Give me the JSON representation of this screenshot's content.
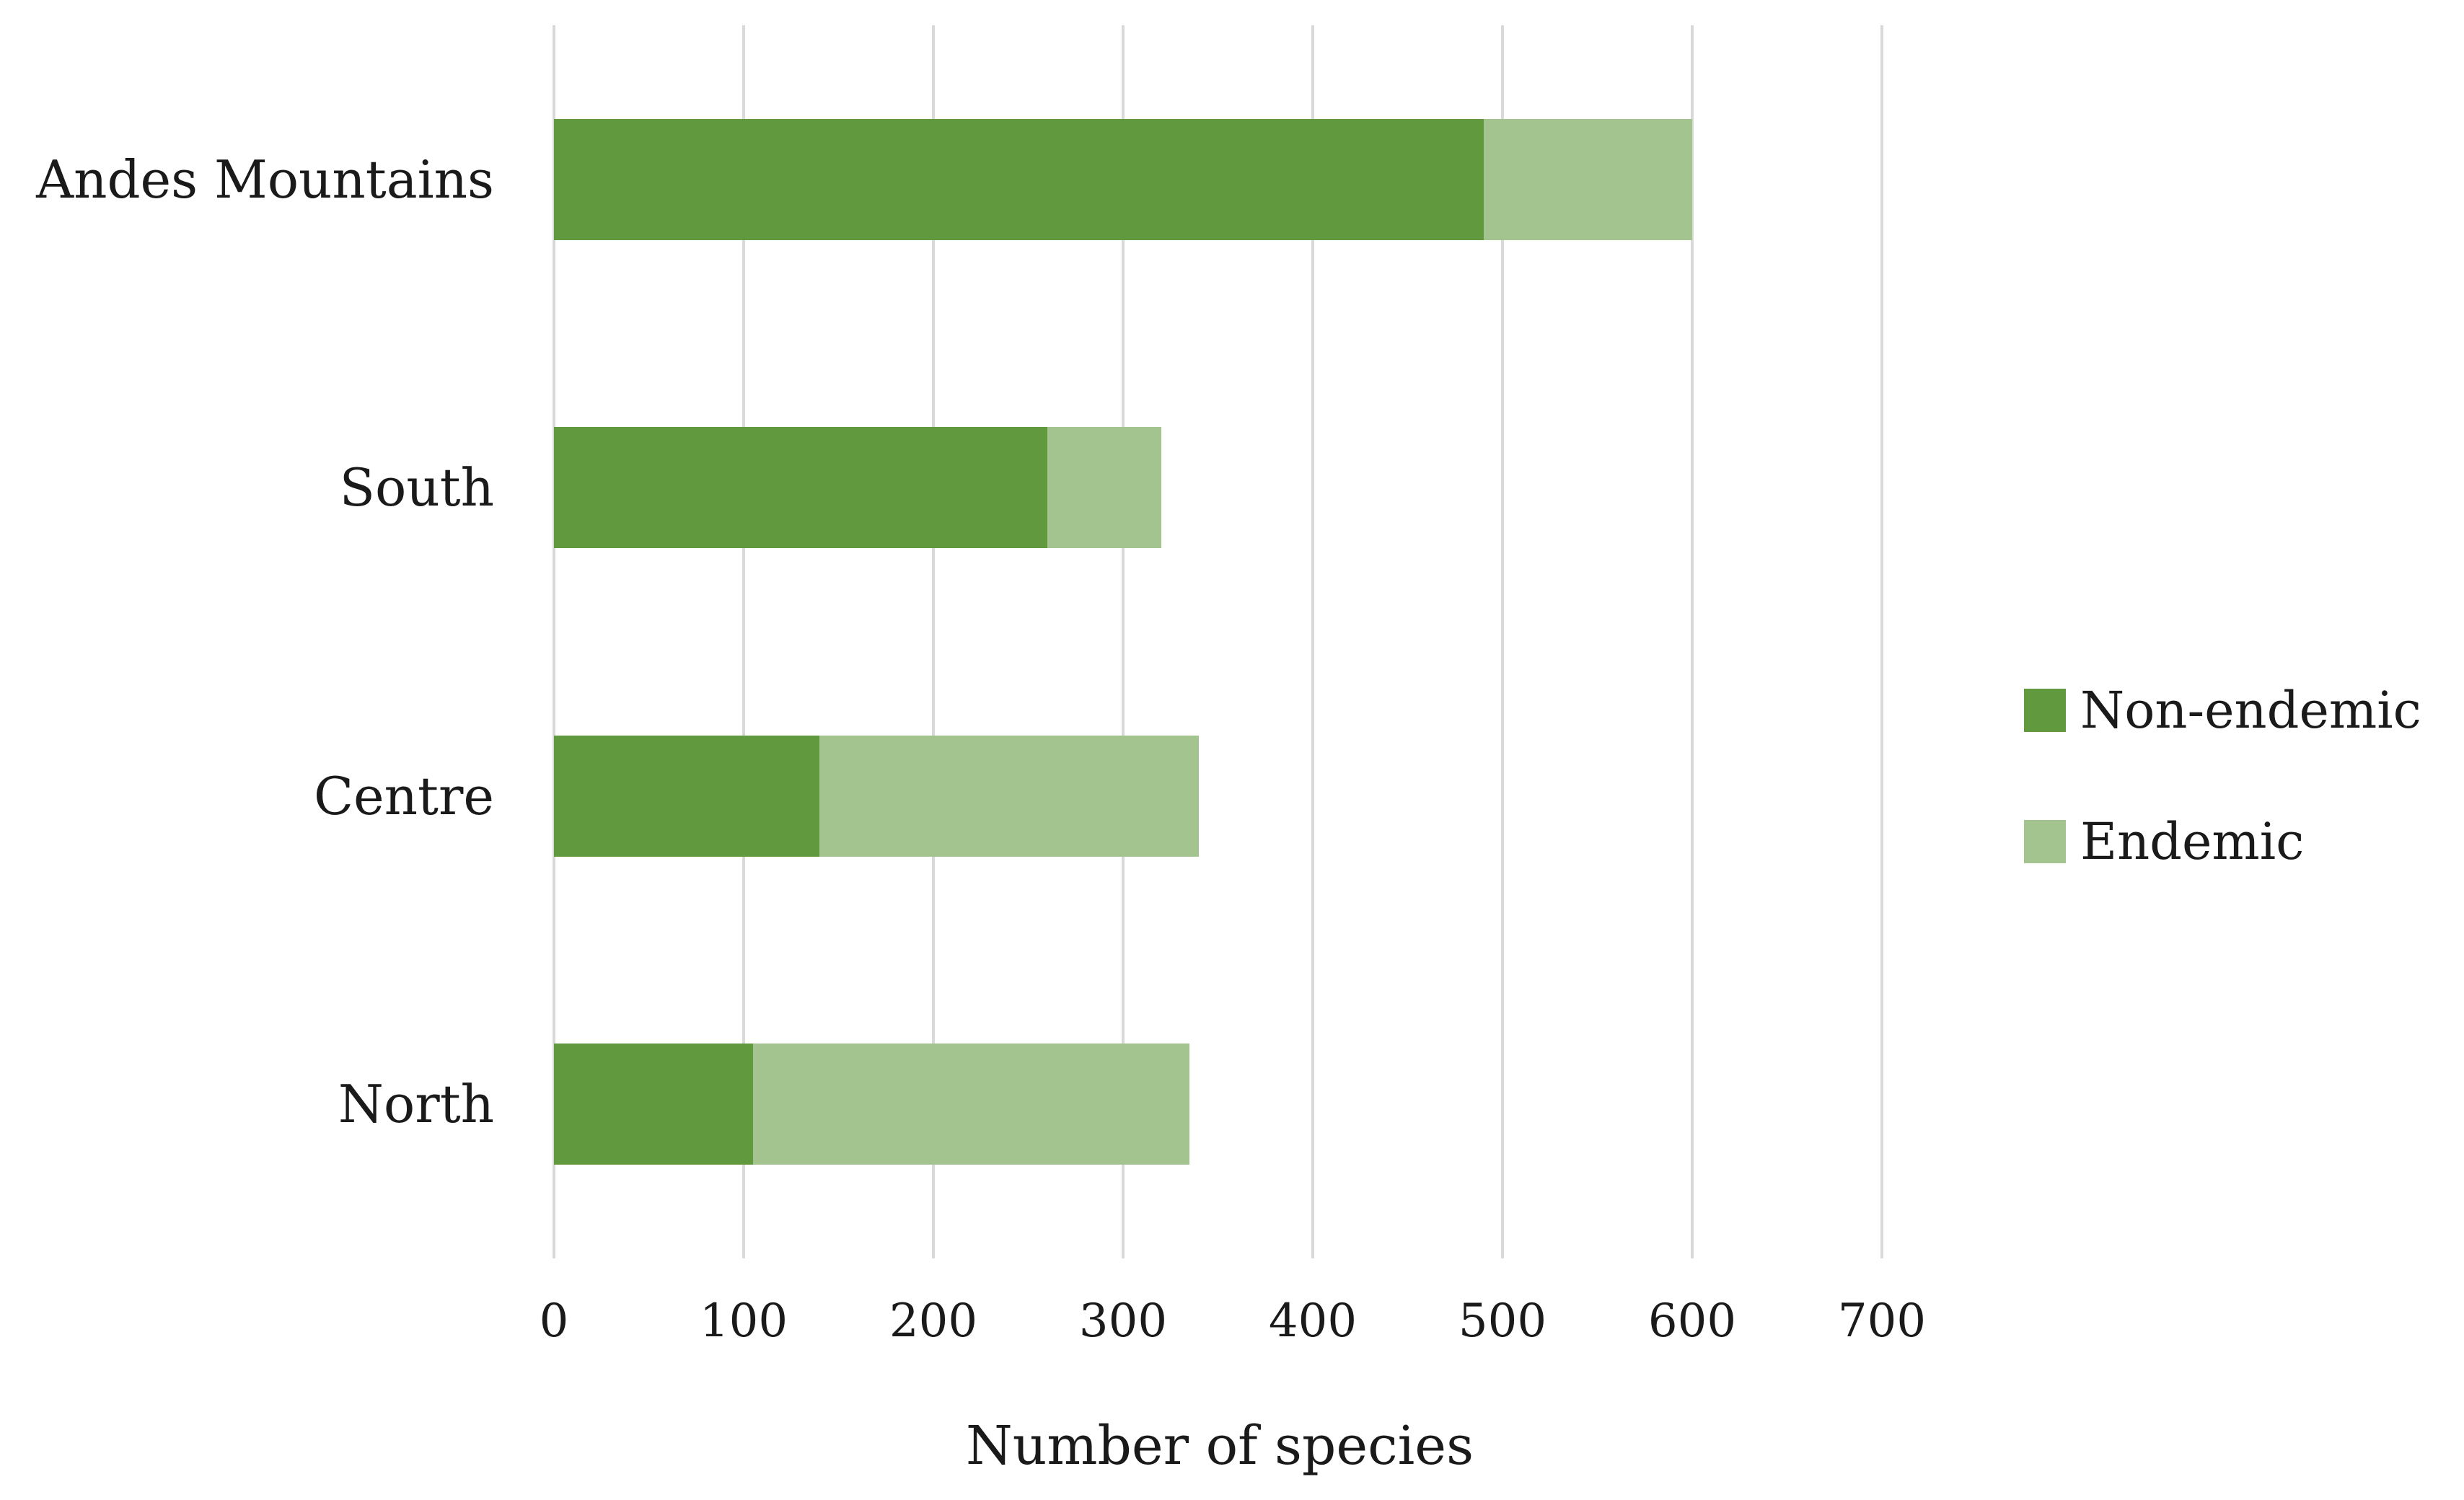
{
  "chart_data": {
    "type": "bar",
    "orientation": "horizontal",
    "stacked": true,
    "title": "",
    "xlabel": "Number of species",
    "ylabel": "",
    "categories": [
      "Andes Mountains",
      "South",
      "Centre",
      "North"
    ],
    "series": [
      {
        "name": "Non-endemic",
        "color": "#61993E",
        "values": [
          490,
          260,
          140,
          105
        ]
      },
      {
        "name": "Endemic",
        "color": "#A3C48F",
        "values": [
          110,
          60,
          200,
          230
        ]
      }
    ],
    "xlim": [
      0,
      700
    ],
    "xticks": [
      0,
      100,
      200,
      300,
      400,
      500,
      600,
      700
    ],
    "grid": "vertical",
    "gridline_color": "#D9D9D9",
    "background_color": "#FFFFFF",
    "text_color": "#1A1A1A",
    "legend_position": "right"
  }
}
